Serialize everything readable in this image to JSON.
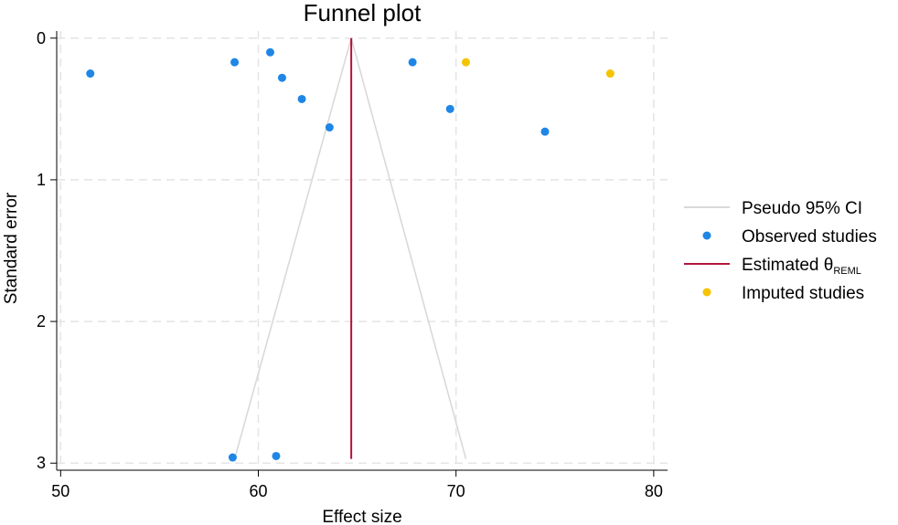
{
  "chart_data": {
    "type": "scatter",
    "title": "Funnel plot",
    "xlabel": "Effect size",
    "ylabel": "Standard error",
    "xlim": [
      49.8,
      80.7
    ],
    "ylim": [
      3.05,
      -0.05
    ],
    "y_axis_inverted": true,
    "grid": true,
    "legend_position": "right",
    "x_ticks": [
      "50",
      "60",
      "70",
      "80"
    ],
    "x_tick_values": [
      50,
      60,
      70,
      80
    ],
    "y_ticks": [
      "0",
      "1",
      "2",
      "3"
    ],
    "y_tick_values": [
      0,
      1,
      2,
      3
    ],
    "estimate": 64.7,
    "pseudo_ci": {
      "apex": [
        64.7,
        0
      ],
      "left_base": [
        58.8,
        2.97
      ],
      "right_base": [
        70.5,
        2.97
      ]
    },
    "series": [
      {
        "name": "Observed studies",
        "color": "#1f86e6",
        "points": [
          {
            "x": 51.5,
            "y": 0.25
          },
          {
            "x": 58.8,
            "y": 0.17
          },
          {
            "x": 60.6,
            "y": 0.1
          },
          {
            "x": 61.2,
            "y": 0.28
          },
          {
            "x": 62.2,
            "y": 0.43
          },
          {
            "x": 63.6,
            "y": 0.63
          },
          {
            "x": 67.8,
            "y": 0.17
          },
          {
            "x": 69.7,
            "y": 0.5
          },
          {
            "x": 74.5,
            "y": 0.66
          },
          {
            "x": 58.7,
            "y": 2.96
          },
          {
            "x": 60.9,
            "y": 2.95
          }
        ]
      },
      {
        "name": "Imputed studies",
        "color": "#f5c400",
        "points": [
          {
            "x": 70.5,
            "y": 0.17
          },
          {
            "x": 77.8,
            "y": 0.25
          }
        ]
      }
    ],
    "legend": [
      {
        "label": "Pseudo 95% CI",
        "subscript": "",
        "symbol": "line",
        "color": "#d9d9d9"
      },
      {
        "label": "Observed studies",
        "subscript": "",
        "symbol": "dot",
        "color": "#1f86e6"
      },
      {
        "label": "Estimated θ",
        "subscript": "REML",
        "symbol": "line",
        "color": "#b3153a"
      },
      {
        "label": "Imputed studies",
        "subscript": "",
        "symbol": "dot",
        "color": "#f5c400"
      }
    ],
    "colors": {
      "grid": "#e4e4e4",
      "axis": "#000000",
      "estimate_line": "#b3153a",
      "ci_line": "#d9d9d9"
    }
  }
}
